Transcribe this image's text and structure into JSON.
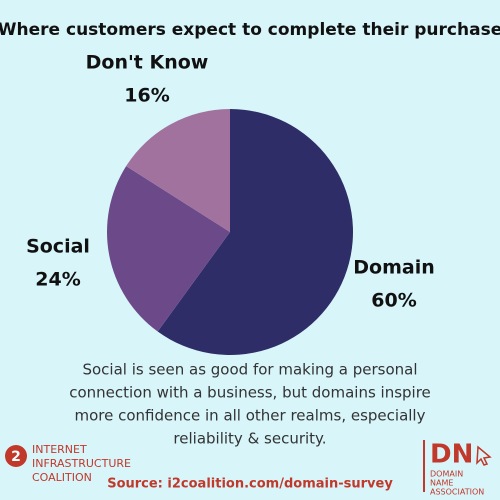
{
  "chart_data": {
    "type": "pie",
    "title": "Where customers expect to complete their purchase",
    "categories": [
      "Domain",
      "Social",
      "Don't Know"
    ],
    "values": [
      60,
      24,
      16
    ],
    "value_labels": [
      "60%",
      "24%",
      "16%"
    ],
    "colors": [
      "#2e2d67",
      "#6c4a89",
      "#a2729f"
    ]
  },
  "caption": [
    "Social is seen as good for making a personal",
    "connection with a business, but domains inspire",
    "more confidence in all other realms, especially",
    "reliability & security."
  ],
  "source": "Source: i2coalition.com/domain-survey",
  "logo_left": {
    "mark": "2",
    "lines": [
      "INTERNET",
      "INFRASTRUCTURE",
      "COALITION"
    ]
  },
  "logo_right": {
    "mark": "DN",
    "lines": [
      "DOMAIN",
      "NAME",
      "ASSOCIATION"
    ]
  }
}
